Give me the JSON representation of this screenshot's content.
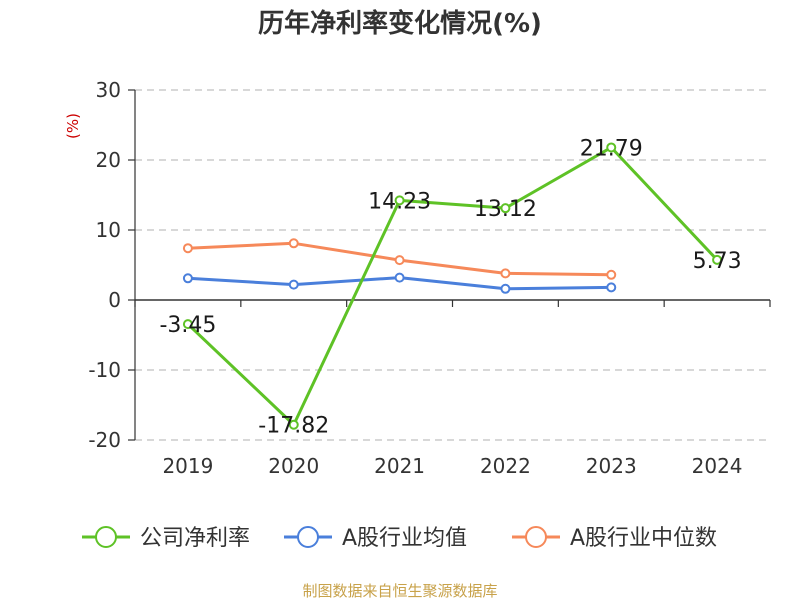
{
  "chart_data": {
    "type": "line",
    "title": "历年净利率变化情况(%)",
    "ylabel": "(%)",
    "categories": [
      "2019",
      "2020",
      "2021",
      "2022",
      "2023",
      "2024"
    ],
    "y_ticks": [
      "30",
      "20",
      "10",
      "0",
      "-10",
      "-20"
    ],
    "ylim": [
      -20,
      30
    ],
    "grid": true,
    "legend_position": "bottom",
    "series": [
      {
        "name": "公司净利率",
        "color": "#5ec226",
        "values": [
          -3.45,
          -17.82,
          14.23,
          13.12,
          21.79,
          5.73
        ],
        "labels": [
          "-3.45",
          "-17.82",
          "14.23",
          "13.12",
          "21.79",
          "5.73"
        ]
      },
      {
        "name": "A股行业均值",
        "color": "#4a7fdb",
        "values": [
          3.1,
          2.2,
          3.2,
          1.6,
          1.8,
          null
        ]
      },
      {
        "name": "A股行业中位数",
        "color": "#f6895a",
        "values": [
          7.4,
          8.1,
          5.7,
          3.8,
          3.6,
          null
        ]
      }
    ],
    "source": "制图数据来自恒生聚源数据库"
  }
}
